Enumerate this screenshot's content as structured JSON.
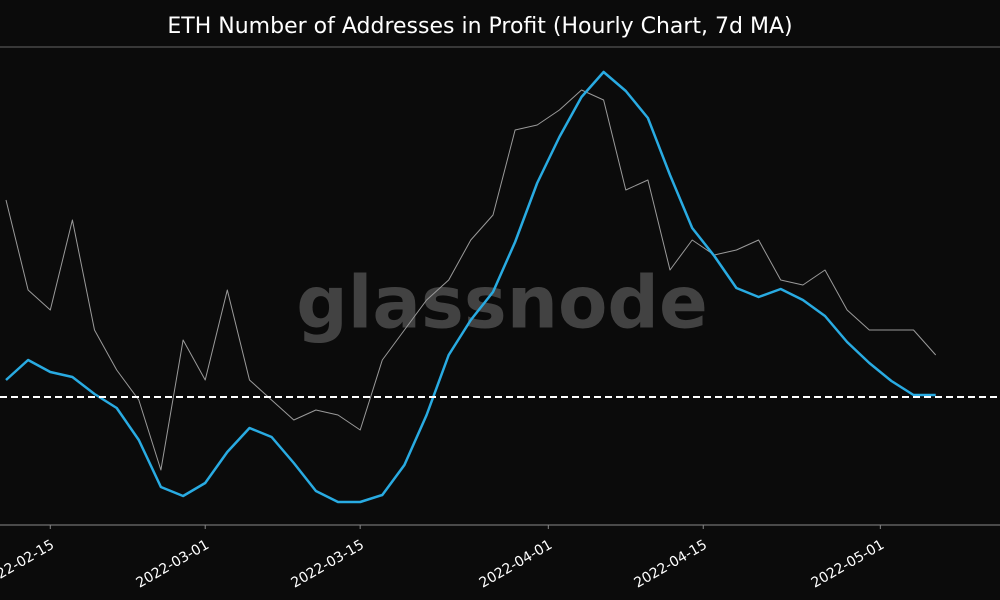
{
  "chart_data": {
    "type": "line",
    "title": "ETH Number of Addresses in Profit (Hourly Chart, 7d MA)",
    "watermark": "glassnode",
    "x": [
      "2022-02-11",
      "2022-02-13",
      "2022-02-15",
      "2022-02-17",
      "2022-02-19",
      "2022-02-21",
      "2022-02-23",
      "2022-02-25",
      "2022-02-27",
      "2022-03-01",
      "2022-03-03",
      "2022-03-05",
      "2022-03-07",
      "2022-03-09",
      "2022-03-11",
      "2022-03-13",
      "2022-03-15",
      "2022-03-17",
      "2022-03-19",
      "2022-03-21",
      "2022-03-23",
      "2022-03-25",
      "2022-03-27",
      "2022-03-29",
      "2022-03-31",
      "2022-04-02",
      "2022-04-04",
      "2022-04-06",
      "2022-04-08",
      "2022-04-10",
      "2022-04-12",
      "2022-04-14",
      "2022-04-16",
      "2022-04-18",
      "2022-04-20",
      "2022-04-22",
      "2022-04-24",
      "2022-04-26",
      "2022-04-28",
      "2022-04-30",
      "2022-05-02",
      "2022-05-04",
      "2022-05-06"
    ],
    "series": [
      {
        "color": "#9a9a9a",
        "values": [
          325,
          235,
          215,
          305,
          195,
          155,
          125,
          55,
          185,
          145,
          235,
          145,
          125,
          105,
          115,
          110,
          95,
          165,
          195,
          225,
          245,
          285,
          310,
          395,
          400,
          415,
          435,
          425,
          335,
          345,
          255,
          285,
          270,
          275,
          285,
          245,
          240,
          255,
          215,
          195,
          195,
          195,
          170
        ]
      },
      {
        "color": "#29abe2",
        "values": [
          145,
          165,
          153,
          148,
          131,
          117,
          85,
          38,
          29,
          42,
          73,
          97,
          88,
          62,
          34,
          23,
          23,
          30,
          60,
          110,
          170,
          205,
          233,
          283,
          342,
          388,
          428,
          453,
          434,
          407,
          350,
          297,
          269,
          237,
          228,
          236,
          225,
          209,
          183,
          162,
          144,
          130,
          130
        ]
      }
    ],
    "reference_line": 128,
    "xlim": [
      "2022-02-11",
      "2022-05-11"
    ],
    "ylim": [
      0,
      478
    ],
    "xticks": [
      "2022-02-15",
      "2022-03-01",
      "2022-03-15",
      "2022-04-01",
      "2022-04-15",
      "2022-05-01"
    ]
  }
}
